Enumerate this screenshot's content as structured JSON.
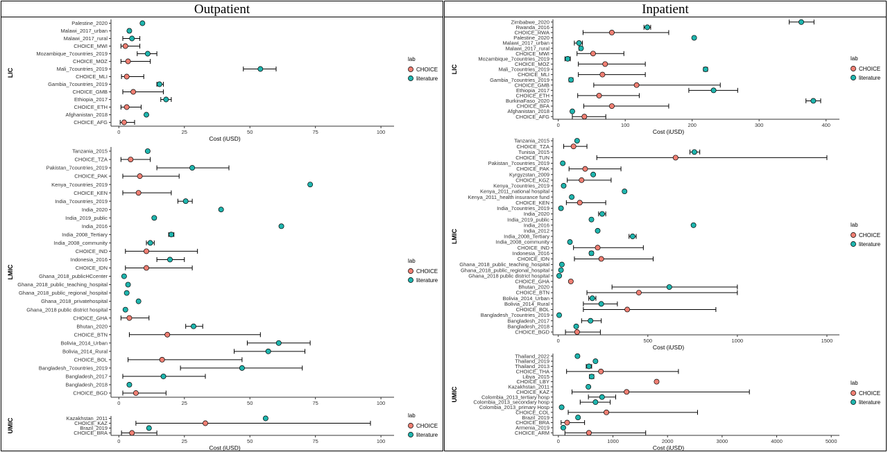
{
  "figure": {
    "title_left": "Outpatient",
    "title_right": "Inpatient",
    "colors": {
      "CHOICE": "#F07F73",
      "literature": "#1FB5AE"
    },
    "legend_title": "lab",
    "legend_labels": [
      "CHOICE",
      "literature"
    ]
  },
  "chart_data": [
    {
      "type": "scatter",
      "name": "Outpatient",
      "strip": "LIC",
      "xlabel": "Cost (iUSD)",
      "xlim": [
        -3,
        105
      ],
      "xticks": [
        0,
        25,
        50,
        75,
        100
      ],
      "points": [
        {
          "label": "Palestine_2020",
          "lab": "literature",
          "est": 9,
          "lo": null,
          "hi": null
        },
        {
          "label": "Malawi_2017_urban",
          "lab": "literature",
          "est": 4,
          "lo": 3.5,
          "hi": 4.5
        },
        {
          "label": "Malawi_2017_rural",
          "lab": "literature",
          "est": 5,
          "lo": 1.5,
          "hi": 8
        },
        {
          "label": "CHOICE_MWI",
          "lab": "CHOICE",
          "est": 2.5,
          "lo": 0.8,
          "hi": 8
        },
        {
          "label": "Mozambique_7countries_2019",
          "lab": "literature",
          "est": 11,
          "lo": 7,
          "hi": 14.5
        },
        {
          "label": "CHOICE_MOZ",
          "lab": "CHOICE",
          "est": 3.5,
          "lo": 0.8,
          "hi": 12
        },
        {
          "label": "Mali_7countries_2019",
          "lab": "literature",
          "est": 54,
          "lo": 47.5,
          "hi": 60
        },
        {
          "label": "CHOICE_MLI",
          "lab": "CHOICE",
          "est": 3,
          "lo": 1,
          "hi": 9.5
        },
        {
          "label": "Gambia_7countries_2019",
          "lab": "literature",
          "est": 15.5,
          "lo": 14.5,
          "hi": 17
        },
        {
          "label": "CHOICE_GMB",
          "lab": "CHOICE",
          "est": 5.5,
          "lo": 1.5,
          "hi": 17
        },
        {
          "label": "Ethiopia_2017",
          "lab": "literature",
          "est": 18,
          "lo": 16,
          "hi": 20
        },
        {
          "label": "CHOICE_ETH",
          "lab": "CHOICE",
          "est": 3,
          "lo": 0.8,
          "hi": 8.5
        },
        {
          "label": "Afghanistan_2018",
          "lab": "literature",
          "est": 10.5,
          "lo": null,
          "hi": null
        },
        {
          "label": "CHOICE_AFG",
          "lab": "CHOICE",
          "est": 2,
          "lo": 0.5,
          "hi": 6
        }
      ]
    },
    {
      "type": "scatter",
      "name": "Outpatient",
      "strip": "LMIC",
      "xlabel": "",
      "xlim": [
        -3,
        105
      ],
      "xticks": [
        0,
        25,
        50,
        75,
        100
      ],
      "points": [
        {
          "label": "Tanzania_2015",
          "lab": "literature",
          "est": 11,
          "lo": null,
          "hi": null
        },
        {
          "label": "CHOICE_TZA",
          "lab": "CHOICE",
          "est": 4.5,
          "lo": 0.8,
          "hi": 12
        },
        {
          "label": "Pakistan_7countries_2019",
          "lab": "literature",
          "est": 28,
          "lo": 14.5,
          "hi": 42
        },
        {
          "label": "CHOICE_PAK",
          "lab": "CHOICE",
          "est": 8,
          "lo": 1.5,
          "hi": 23
        },
        {
          "label": "Kenya_7countries_2019",
          "lab": "literature",
          "est": 73,
          "lo": null,
          "hi": null
        },
        {
          "label": "CHOICE_KEN",
          "lab": "CHOICE",
          "est": 7.5,
          "lo": 1.5,
          "hi": 20
        },
        {
          "label": "India_7countries_2019",
          "lab": "literature",
          "est": 25.5,
          "lo": 22.5,
          "hi": 28
        },
        {
          "label": "India_2020",
          "lab": "literature",
          "est": 39,
          "lo": null,
          "hi": null
        },
        {
          "label": "India_2019_public",
          "lab": "literature",
          "est": 13.5,
          "lo": null,
          "hi": null
        },
        {
          "label": "India_2016",
          "lab": "literature",
          "est": 62,
          "lo": null,
          "hi": null
        },
        {
          "label": "India_2008_Tertiary",
          "lab": "literature",
          "est": 20,
          "lo": 19,
          "hi": 21
        },
        {
          "label": "India_2008_community",
          "lab": "literature",
          "est": 12,
          "lo": 10.5,
          "hi": 13.5
        },
        {
          "label": "CHOICE_IND",
          "lab": "CHOICE",
          "est": 10.5,
          "lo": 2.5,
          "hi": 30
        },
        {
          "label": "Indonesia_2016",
          "lab": "literature",
          "est": 19.5,
          "lo": 14.5,
          "hi": 25
        },
        {
          "label": "CHOICE_IDN",
          "lab": "CHOICE",
          "est": 10.5,
          "lo": 2.5,
          "hi": 28
        },
        {
          "label": "Ghana_2018_publicHCcenter",
          "lab": "literature",
          "est": 2,
          "lo": null,
          "hi": null
        },
        {
          "label": "Ghana_2018_public_teaching_hospital",
          "lab": "literature",
          "est": 3.5,
          "lo": null,
          "hi": null
        },
        {
          "label": "Ghana_2018_public_regional_hospital",
          "lab": "literature",
          "est": 3,
          "lo": null,
          "hi": null
        },
        {
          "label": "Ghana_2018_privatehospital",
          "lab": "literature",
          "est": 7.5,
          "lo": null,
          "hi": null
        },
        {
          "label": "Ghana_2018 public district hospital",
          "lab": "literature",
          "est": 2.5,
          "lo": null,
          "hi": null
        },
        {
          "label": "CHOICE_GHA",
          "lab": "CHOICE",
          "est": 4,
          "lo": 0.8,
          "hi": 11.5
        },
        {
          "label": "Bhutan_2020",
          "lab": "literature",
          "est": 28.5,
          "lo": 25.5,
          "hi": 32
        },
        {
          "label": "CHOICE_BTN",
          "lab": "CHOICE",
          "est": 18.5,
          "lo": 4,
          "hi": 54
        },
        {
          "label": "Bolivia_2014_Urban",
          "lab": "literature",
          "est": 61,
          "lo": 49,
          "hi": 73
        },
        {
          "label": "Bolivia_2014_Rural",
          "lab": "literature",
          "est": 57,
          "lo": 44,
          "hi": 71
        },
        {
          "label": "CHOICE_BOL",
          "lab": "CHOICE",
          "est": 16.5,
          "lo": 3.5,
          "hi": 47
        },
        {
          "label": "Bangladesh_7countries_2019",
          "lab": "literature",
          "est": 47,
          "lo": 23.5,
          "hi": 70
        },
        {
          "label": "Bangladesh_2017",
          "lab": "literature",
          "est": 17,
          "lo": 1.5,
          "hi": 33
        },
        {
          "label": "Bangladesh_2018",
          "lab": "literature",
          "est": 4,
          "lo": null,
          "hi": null
        },
        {
          "label": "CHOICE_BGD",
          "lab": "CHOICE",
          "est": 6.5,
          "lo": 1.5,
          "hi": 18
        }
      ]
    },
    {
      "type": "scatter",
      "name": "Outpatient",
      "strip": "UMIC",
      "xlabel": "Cost (iUSD)",
      "xlim": [
        -3,
        105
      ],
      "xticks": [
        0,
        25,
        50,
        75,
        100
      ],
      "points": [
        {
          "label": "Kazakhstan_2011",
          "lab": "literature",
          "est": 56,
          "lo": null,
          "hi": null
        },
        {
          "label": "CHOICE_KAZ",
          "lab": "CHOICE",
          "est": 33,
          "lo": 6.5,
          "hi": 96
        },
        {
          "label": "Brazil_2019",
          "lab": "literature",
          "est": 11.5,
          "lo": null,
          "hi": null
        },
        {
          "label": "CHOICE_BRA",
          "lab": "CHOICE",
          "est": 5,
          "lo": 1,
          "hi": 14.5
        }
      ]
    },
    {
      "type": "scatter",
      "name": "Inpatient",
      "strip": "LIC",
      "xlabel": "Cost (iUSD)",
      "xlim": [
        -8,
        420
      ],
      "xticks": [
        0,
        100,
        200,
        300,
        400
      ],
      "points": [
        {
          "label": "Zimbabwe_2020",
          "lab": "literature",
          "est": 363,
          "lo": 345,
          "hi": 382
        },
        {
          "label": "Rwanda_2016",
          "lab": "literature",
          "est": 133,
          "lo": 128,
          "hi": 138
        },
        {
          "label": "CHOICE_RWA",
          "lab": "CHOICE",
          "est": 80,
          "lo": 37,
          "hi": 165
        },
        {
          "label": "Palestine_2020",
          "lab": "literature",
          "est": 203,
          "lo": null,
          "hi": null
        },
        {
          "label": "Malawi_2017_urban",
          "lab": "literature",
          "est": 31,
          "lo": 24,
          "hi": 36
        },
        {
          "label": "Malawi_2017_rural",
          "lab": "literature",
          "est": 34,
          "lo": 31,
          "hi": 36
        },
        {
          "label": "CHOICE_MWI",
          "lab": "CHOICE",
          "est": 52,
          "lo": 28,
          "hi": 98
        },
        {
          "label": "Mozambique_7countries_2019",
          "lab": "literature",
          "est": 14,
          "lo": 10,
          "hi": 18
        },
        {
          "label": "CHOICE_MOZ",
          "lab": "CHOICE",
          "est": 70,
          "lo": 30,
          "hi": 130
        },
        {
          "label": "Mali_7countries_2019",
          "lab": "literature",
          "est": 220,
          "lo": 217,
          "hi": 223
        },
        {
          "label": "CHOICE_MLI",
          "lab": "CHOICE",
          "est": 66,
          "lo": 30,
          "hi": 130
        },
        {
          "label": "Gambia_7countries_2019",
          "lab": "literature",
          "est": 19,
          "lo": 16,
          "hi": 22
        },
        {
          "label": "CHOICE_GMB",
          "lab": "CHOICE",
          "est": 117,
          "lo": 53,
          "hi": 242
        },
        {
          "label": "Ethiopia_2017",
          "lab": "literature",
          "est": 232,
          "lo": 195,
          "hi": 268
        },
        {
          "label": "CHOICE_ETH",
          "lab": "CHOICE",
          "est": 61,
          "lo": 29,
          "hi": 121
        },
        {
          "label": "BurkinaFaso_2020",
          "lab": "literature",
          "est": 381,
          "lo": 370,
          "hi": 392
        },
        {
          "label": "CHOICE_BFA",
          "lab": "CHOICE",
          "est": 80,
          "lo": 38,
          "hi": 165
        },
        {
          "label": "Afghanistan_2018",
          "lab": "literature",
          "est": 21,
          "lo": null,
          "hi": null
        },
        {
          "label": "CHOICE_AFG",
          "lab": "CHOICE",
          "est": 39,
          "lo": 21,
          "hi": 71
        }
      ]
    },
    {
      "type": "scatter",
      "name": "Inpatient",
      "strip": "LMIC",
      "xlabel": "Cost (iUSD)",
      "xlim": [
        -30,
        1570
      ],
      "xticks": [
        0,
        500,
        1000,
        1500
      ],
      "points": [
        {
          "label": "Tanzania_2015",
          "lab": "literature",
          "est": 105,
          "lo": null,
          "hi": null
        },
        {
          "label": "CHOICE_TZA",
          "lab": "CHOICE",
          "est": 85,
          "lo": 30,
          "hi": 160
        },
        {
          "label": "Tunisia_2015",
          "lab": "literature",
          "est": 760,
          "lo": 735,
          "hi": 790
        },
        {
          "label": "CHOICE_TUN",
          "lab": "CHOICE",
          "est": 655,
          "lo": 215,
          "hi": 1500
        },
        {
          "label": "Pakistan_7countries_2019",
          "lab": "literature",
          "est": 25,
          "lo": 20,
          "hi": 30
        },
        {
          "label": "CHOICE_PAK",
          "lab": "CHOICE",
          "est": 150,
          "lo": 60,
          "hi": 350
        },
        {
          "label": "Kyrgyzstan_2009",
          "lab": "literature",
          "est": 195,
          "lo": null,
          "hi": null
        },
        {
          "label": "CHOICE_KGZ",
          "lab": "CHOICE",
          "est": 130,
          "lo": 50,
          "hi": 295
        },
        {
          "label": "Kenya_7countries_2019",
          "lab": "literature",
          "est": 30,
          "lo": 25,
          "hi": 35
        },
        {
          "label": "Kenya_2011_national hospital",
          "lab": "literature",
          "est": 370,
          "lo": null,
          "hi": null
        },
        {
          "label": "Kenya_2011_health insurance fund",
          "lab": "literature",
          "est": 75,
          "lo": null,
          "hi": null
        },
        {
          "label": "CHOICE_KEN",
          "lab": "CHOICE",
          "est": 120,
          "lo": 45,
          "hi": 265
        },
        {
          "label": "India_7countries_2019",
          "lab": "literature",
          "est": 15,
          "lo": 10,
          "hi": 20
        },
        {
          "label": "India_2020",
          "lab": "literature",
          "est": 245,
          "lo": 225,
          "hi": 265
        },
        {
          "label": "India_2019_public",
          "lab": "literature",
          "est": 185,
          "lo": null,
          "hi": null
        },
        {
          "label": "India_2016",
          "lab": "literature",
          "est": 755,
          "lo": null,
          "hi": null
        },
        {
          "label": "India_2012",
          "lab": "literature",
          "est": 220,
          "lo": null,
          "hi": null
        },
        {
          "label": "India_2008_Tertiary",
          "lab": "literature",
          "est": 415,
          "lo": 395,
          "hi": 435
        },
        {
          "label": "India_2008_community",
          "lab": "literature",
          "est": 65,
          "lo": 60,
          "hi": 70
        },
        {
          "label": "CHOICE_IND",
          "lab": "CHOICE",
          "est": 220,
          "lo": 85,
          "hi": 475
        },
        {
          "label": "Indonesia_2016",
          "lab": "literature",
          "est": 185,
          "lo": 175,
          "hi": 195
        },
        {
          "label": "CHOICE_IDN",
          "lab": "CHOICE",
          "est": 240,
          "lo": 90,
          "hi": 530
        },
        {
          "label": "Ghana_2018_public_teaching_hospital",
          "lab": "literature",
          "est": 20,
          "lo": null,
          "hi": null
        },
        {
          "label": "Ghana_2018_public_regional_hospital",
          "lab": "literature",
          "est": 15,
          "lo": null,
          "hi": null
        },
        {
          "label": "Ghana_2018 public district hospital",
          "lab": "literature",
          "est": 5,
          "lo": null,
          "hi": null
        },
        {
          "label": "CHOICE_GHA",
          "lab": "CHOICE",
          "est": 70,
          "lo": null,
          "hi": null
        },
        {
          "label": "Bhutan_2020",
          "lab": "literature",
          "est": 620,
          "lo": 300,
          "hi": 1000
        },
        {
          "label": "CHOICE_BTN",
          "lab": "CHOICE",
          "est": 450,
          "lo": 160,
          "hi": 1000
        },
        {
          "label": "Bolivia_2014_Urban",
          "lab": "literature",
          "est": 190,
          "lo": 170,
          "hi": 210
        },
        {
          "label": "Bolivia_2014_Rural",
          "lab": "literature",
          "est": 240,
          "lo": 140,
          "hi": 330
        },
        {
          "label": "CHOICE_BOL",
          "lab": "CHOICE",
          "est": 385,
          "lo": 140,
          "hi": 880
        },
        {
          "label": "Bangladesh_7countries_2019",
          "lab": "literature",
          "est": 5,
          "lo": 2,
          "hi": 8
        },
        {
          "label": "Bangladesh_2017",
          "lab": "literature",
          "est": 180,
          "lo": 130,
          "hi": 240
        },
        {
          "label": "Bangladesh_2018",
          "lab": "literature",
          "est": 100,
          "lo": null,
          "hi": null
        },
        {
          "label": "CHOICE_BGD",
          "lab": "CHOICE",
          "est": 105,
          "lo": 40,
          "hi": 235
        }
      ]
    },
    {
      "type": "scatter",
      "name": "Inpatient",
      "strip": "UMIC",
      "xlabel": "Cost (iUSD)",
      "xlim": [
        -100,
        5150
      ],
      "xticks": [
        0,
        1000,
        2000,
        3000,
        4000,
        5000
      ],
      "points": [
        {
          "label": "Thailand_2022",
          "lab": "literature",
          "est": 350,
          "lo": null,
          "hi": null
        },
        {
          "label": "Thailand_2019",
          "lab": "literature",
          "est": 680,
          "lo": null,
          "hi": null
        },
        {
          "label": "Thailand_2013",
          "lab": "literature",
          "est": 560,
          "lo": 510,
          "hi": 610
        },
        {
          "label": "CHOICE_THA",
          "lab": "CHOICE",
          "est": 780,
          "lo": 150,
          "hi": 2200
        },
        {
          "label": "Libya_2015",
          "lab": "literature",
          "est": 610,
          "lo": 570,
          "hi": 650
        },
        {
          "label": "CHOICE_LBY",
          "lab": "CHOICE",
          "est": 1800,
          "lo": null,
          "hi": null
        },
        {
          "label": "Kazakhstan_2011",
          "lab": "literature",
          "est": 550,
          "lo": null,
          "hi": null
        },
        {
          "label": "CHOICE_KAZ",
          "lab": "CHOICE",
          "est": 1250,
          "lo": 250,
          "hi": 3500
        },
        {
          "label": "Colombia_2013_tertiary hosp",
          "lab": "literature",
          "est": 800,
          "lo": 550,
          "hi": 1050
        },
        {
          "label": "Colombia_2013_secondary hosp",
          "lab": "literature",
          "est": 680,
          "lo": 400,
          "hi": 950
        },
        {
          "label": "Colombia_2013_primary Hosp",
          "lab": "literature",
          "est": 60,
          "lo": null,
          "hi": null
        },
        {
          "label": "CHOICE_COL",
          "lab": "CHOICE",
          "est": 880,
          "lo": 180,
          "hi": 2550
        },
        {
          "label": "Brazil_2019",
          "lab": "literature",
          "est": 360,
          "lo": null,
          "hi": null
        },
        {
          "label": "CHOICE_BRA",
          "lab": "CHOICE",
          "est": 160,
          "lo": 50,
          "hi": 480
        },
        {
          "label": "Armenia_2019",
          "lab": "literature",
          "est": 90,
          "lo": null,
          "hi": null
        },
        {
          "label": "CHOICE_ARM",
          "lab": "CHOICE",
          "est": 560,
          "lo": 120,
          "hi": 1600
        }
      ]
    }
  ]
}
